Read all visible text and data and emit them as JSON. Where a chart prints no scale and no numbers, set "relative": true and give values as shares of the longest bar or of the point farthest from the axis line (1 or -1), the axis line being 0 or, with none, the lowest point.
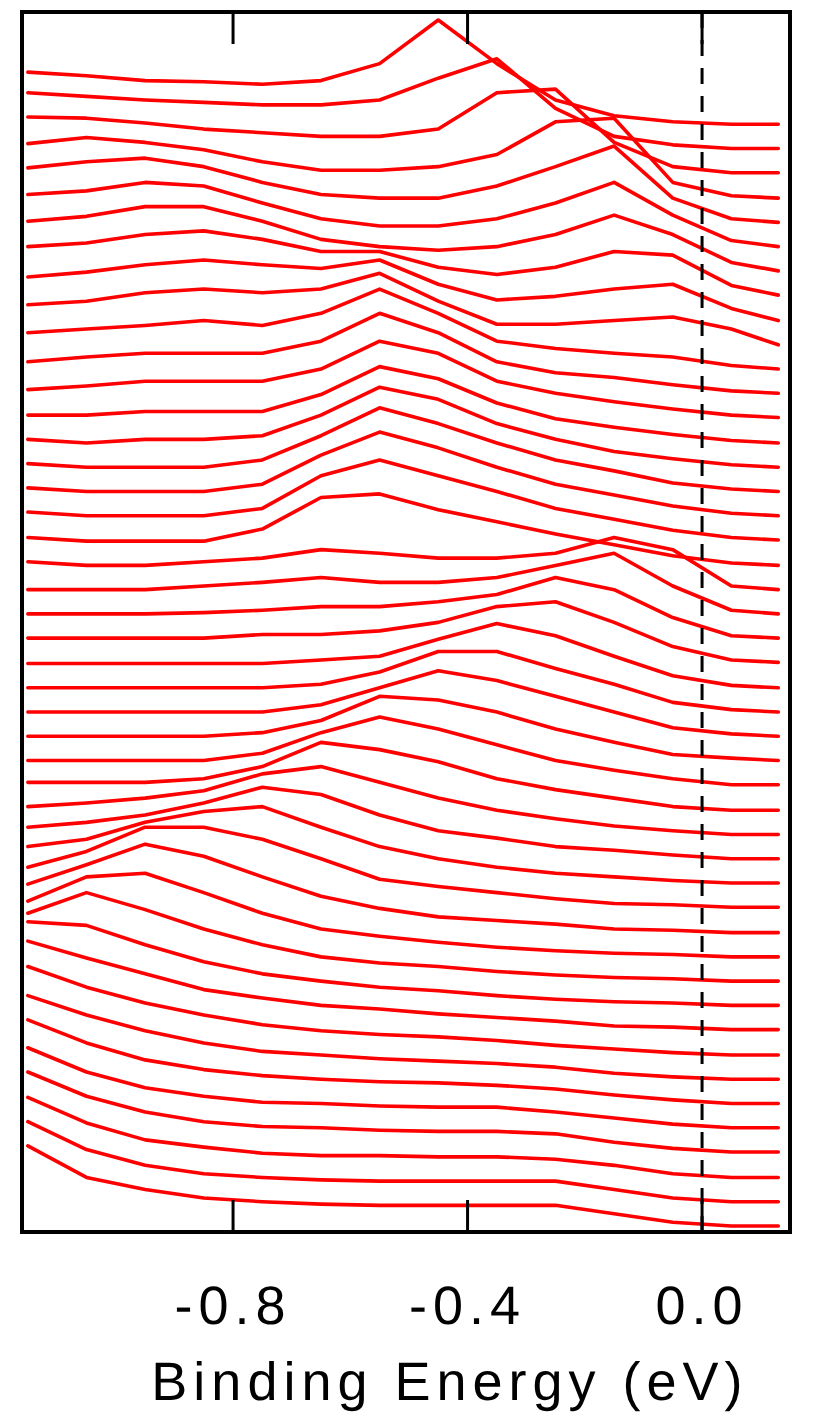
{
  "chart_data": {
    "type": "line",
    "xlabel": "Binding Energy (eV)",
    "relative": true,
    "tick_labels": "x",
    "x": [
      -1.15,
      -1.05,
      -0.95,
      -0.85,
      -0.75,
      -0.65,
      -0.55,
      -0.45,
      -0.35,
      -0.25,
      -0.15,
      -0.05,
      0.05,
      0.13
    ],
    "xlim": [
      -1.16,
      0.15
    ],
    "xticks": [
      -0.8,
      -0.4,
      {
        "value": 0,
        "label": "0.0"
      }
    ],
    "ref_lines": [
      {
        "axis": "x",
        "value": 0,
        "label": null,
        "color": "#000000",
        "line_style": "dashed"
      }
    ],
    "series": [
      {
        "color": "#ff0000",
        "values": [
          0.957,
          0.954,
          0.95,
          0.949,
          0.947,
          0.95,
          0.964,
          1.0,
          0.964,
          0.934,
          0.921,
          0.916,
          0.914,
          0.914
        ]
      },
      {
        "color": "#ff0000",
        "values": [
          0.94,
          0.937,
          0.934,
          0.932,
          0.93,
          0.93,
          0.934,
          0.952,
          0.968,
          0.927,
          0.904,
          0.897,
          0.894,
          0.894
        ]
      },
      {
        "color": "#ff0000",
        "values": [
          0.92,
          0.919,
          0.915,
          0.91,
          0.907,
          0.904,
          0.904,
          0.91,
          0.94,
          0.943,
          0.899,
          0.879,
          0.874,
          0.874
        ]
      },
      {
        "color": "#ff0000",
        "values": [
          0.898,
          0.903,
          0.899,
          0.893,
          0.883,
          0.876,
          0.876,
          0.879,
          0.889,
          0.916,
          0.919,
          0.866,
          0.855,
          0.853
        ]
      },
      {
        "color": "#ff0000",
        "values": [
          0.878,
          0.883,
          0.886,
          0.879,
          0.866,
          0.856,
          0.853,
          0.853,
          0.863,
          0.879,
          0.896,
          0.853,
          0.836,
          0.833
        ]
      },
      {
        "color": "#ff0000",
        "values": [
          0.856,
          0.859,
          0.866,
          0.863,
          0.849,
          0.836,
          0.83,
          0.83,
          0.836,
          0.849,
          0.866,
          0.839,
          0.818,
          0.813
        ]
      },
      {
        "color": "#ff0000",
        "values": [
          0.834,
          0.838,
          0.846,
          0.846,
          0.834,
          0.819,
          0.813,
          0.81,
          0.813,
          0.823,
          0.839,
          0.823,
          0.8,
          0.793
        ]
      },
      {
        "color": "#ff0000",
        "values": [
          0.813,
          0.816,
          0.823,
          0.826,
          0.819,
          0.809,
          0.809,
          0.796,
          0.79,
          0.796,
          0.809,
          0.806,
          0.781,
          0.773
        ]
      },
      {
        "color": "#ff0000",
        "values": [
          0.788,
          0.792,
          0.798,
          0.802,
          0.798,
          0.795,
          0.802,
          0.782,
          0.769,
          0.772,
          0.778,
          0.782,
          0.762,
          0.752
        ]
      },
      {
        "color": "#ff0000",
        "values": [
          0.765,
          0.768,
          0.775,
          0.778,
          0.775,
          0.778,
          0.791,
          0.768,
          0.749,
          0.749,
          0.752,
          0.755,
          0.745,
          0.732
        ]
      },
      {
        "color": "#ff0000",
        "values": [
          0.742,
          0.745,
          0.748,
          0.752,
          0.748,
          0.758,
          0.778,
          0.758,
          0.735,
          0.729,
          0.725,
          0.722,
          0.715,
          0.712
        ]
      },
      {
        "color": "#ff0000",
        "values": [
          0.718,
          0.722,
          0.725,
          0.725,
          0.725,
          0.735,
          0.758,
          0.742,
          0.718,
          0.709,
          0.705,
          0.699,
          0.694,
          0.692
        ]
      },
      {
        "color": "#ff0000",
        "values": [
          0.695,
          0.698,
          0.702,
          0.702,
          0.702,
          0.712,
          0.735,
          0.725,
          0.702,
          0.692,
          0.685,
          0.679,
          0.674,
          0.672
        ]
      },
      {
        "color": "#ff0000",
        "values": [
          0.674,
          0.674,
          0.677,
          0.677,
          0.677,
          0.691,
          0.714,
          0.704,
          0.684,
          0.671,
          0.664,
          0.658,
          0.653,
          0.651
        ]
      },
      {
        "color": "#ff0000",
        "values": [
          0.654,
          0.651,
          0.654,
          0.654,
          0.657,
          0.674,
          0.697,
          0.687,
          0.667,
          0.654,
          0.644,
          0.638,
          0.633,
          0.631
        ]
      },
      {
        "color": "#ff0000",
        "values": [
          0.634,
          0.631,
          0.631,
          0.631,
          0.637,
          0.657,
          0.68,
          0.667,
          0.651,
          0.637,
          0.628,
          0.618,
          0.613,
          0.611
        ]
      },
      {
        "color": "#ff0000",
        "values": [
          0.614,
          0.611,
          0.611,
          0.611,
          0.617,
          0.641,
          0.66,
          0.647,
          0.631,
          0.617,
          0.608,
          0.599,
          0.593,
          0.591
        ]
      },
      {
        "color": "#ff0000",
        "values": [
          0.594,
          0.591,
          0.591,
          0.591,
          0.597,
          0.624,
          0.637,
          0.624,
          0.611,
          0.597,
          0.588,
          0.579,
          0.573,
          0.571
        ]
      },
      {
        "color": "#ff0000",
        "values": [
          0.573,
          0.57,
          0.57,
          0.57,
          0.58,
          0.606,
          0.609,
          0.596,
          0.586,
          0.576,
          0.567,
          0.558,
          0.552,
          0.55
        ]
      },
      {
        "color": "#ff0000",
        "values": [
          0.553,
          0.55,
          0.55,
          0.553,
          0.556,
          0.563,
          0.56,
          0.556,
          0.556,
          0.56,
          0.573,
          0.563,
          0.533,
          0.53
        ]
      },
      {
        "color": "#ff0000",
        "values": [
          0.53,
          0.53,
          0.53,
          0.533,
          0.536,
          0.54,
          0.536,
          0.536,
          0.54,
          0.55,
          0.56,
          0.533,
          0.513,
          0.51
        ]
      },
      {
        "color": "#ff0000",
        "values": [
          0.51,
          0.51,
          0.51,
          0.511,
          0.513,
          0.516,
          0.516,
          0.52,
          0.526,
          0.54,
          0.53,
          0.507,
          0.492,
          0.49
        ]
      },
      {
        "color": "#ff0000",
        "values": [
          0.49,
          0.49,
          0.49,
          0.49,
          0.493,
          0.493,
          0.496,
          0.503,
          0.516,
          0.52,
          0.503,
          0.483,
          0.472,
          0.47
        ]
      },
      {
        "color": "#ff0000",
        "values": [
          0.469,
          0.469,
          0.469,
          0.469,
          0.469,
          0.472,
          0.475,
          0.489,
          0.502,
          0.492,
          0.475,
          0.459,
          0.451,
          0.449
        ]
      },
      {
        "color": "#ff0000",
        "values": [
          0.449,
          0.449,
          0.449,
          0.449,
          0.449,
          0.452,
          0.462,
          0.479,
          0.479,
          0.465,
          0.452,
          0.437,
          0.431,
          0.429
        ]
      },
      {
        "color": "#ff0000",
        "values": [
          0.429,
          0.429,
          0.429,
          0.429,
          0.429,
          0.435,
          0.449,
          0.463,
          0.455,
          0.442,
          0.429,
          0.416,
          0.411,
          0.409
        ]
      },
      {
        "color": "#ff0000",
        "values": [
          0.409,
          0.409,
          0.409,
          0.409,
          0.412,
          0.422,
          0.442,
          0.439,
          0.429,
          0.415,
          0.404,
          0.394,
          0.391,
          0.389
        ]
      },
      {
        "color": "#ff0000",
        "values": [
          0.389,
          0.389,
          0.389,
          0.389,
          0.395,
          0.412,
          0.425,
          0.415,
          0.402,
          0.389,
          0.381,
          0.374,
          0.369,
          0.369
        ]
      },
      {
        "color": "#ff0000",
        "values": [
          0.371,
          0.371,
          0.371,
          0.374,
          0.384,
          0.404,
          0.398,
          0.388,
          0.374,
          0.365,
          0.358,
          0.351,
          0.348,
          0.348
        ]
      },
      {
        "color": "#ff0000",
        "values": [
          0.351,
          0.354,
          0.358,
          0.364,
          0.378,
          0.384,
          0.371,
          0.358,
          0.348,
          0.341,
          0.335,
          0.331,
          0.328,
          0.328
        ]
      },
      {
        "color": "#ff0000",
        "values": [
          0.334,
          0.338,
          0.344,
          0.354,
          0.367,
          0.361,
          0.344,
          0.331,
          0.325,
          0.318,
          0.315,
          0.311,
          0.308,
          0.308
        ]
      },
      {
        "color": "#ff0000",
        "values": [
          0.318,
          0.324,
          0.338,
          0.347,
          0.351,
          0.334,
          0.318,
          0.308,
          0.301,
          0.296,
          0.293,
          0.29,
          0.288,
          0.288
        ]
      },
      {
        "color": "#ff0000",
        "values": [
          0.301,
          0.314,
          0.334,
          0.334,
          0.324,
          0.308,
          0.291,
          0.285,
          0.28,
          0.275,
          0.271,
          0.27,
          0.268,
          0.268
        ]
      },
      {
        "color": "#ff0000",
        "values": [
          0.287,
          0.303,
          0.32,
          0.31,
          0.293,
          0.277,
          0.267,
          0.26,
          0.257,
          0.254,
          0.25,
          0.249,
          0.247,
          0.247
        ]
      },
      {
        "color": "#ff0000",
        "values": [
          0.273,
          0.293,
          0.296,
          0.28,
          0.263,
          0.25,
          0.244,
          0.239,
          0.235,
          0.232,
          0.23,
          0.229,
          0.227,
          0.227
        ]
      },
      {
        "color": "#ff0000",
        "values": [
          0.263,
          0.28,
          0.266,
          0.25,
          0.237,
          0.227,
          0.222,
          0.219,
          0.215,
          0.212,
          0.21,
          0.209,
          0.207,
          0.207
        ]
      },
      {
        "color": "#ff0000",
        "values": [
          0.256,
          0.253,
          0.237,
          0.223,
          0.213,
          0.207,
          0.202,
          0.199,
          0.195,
          0.192,
          0.19,
          0.189,
          0.187,
          0.187
        ]
      },
      {
        "color": "#ff0000",
        "values": [
          0.24,
          0.226,
          0.213,
          0.2,
          0.193,
          0.187,
          0.184,
          0.18,
          0.177,
          0.174,
          0.17,
          0.169,
          0.167,
          0.167
        ]
      },
      {
        "color": "#ff0000",
        "values": [
          0.219,
          0.202,
          0.189,
          0.179,
          0.171,
          0.166,
          0.163,
          0.161,
          0.158,
          0.154,
          0.151,
          0.148,
          0.146,
          0.146
        ]
      },
      {
        "color": "#ff0000",
        "values": [
          0.195,
          0.179,
          0.166,
          0.156,
          0.149,
          0.146,
          0.143,
          0.141,
          0.139,
          0.136,
          0.131,
          0.128,
          0.126,
          0.126
        ]
      },
      {
        "color": "#ff0000",
        "values": [
          0.175,
          0.156,
          0.142,
          0.134,
          0.129,
          0.126,
          0.124,
          0.123,
          0.121,
          0.118,
          0.113,
          0.109,
          0.106,
          0.106
        ]
      },
      {
        "color": "#ff0000",
        "values": [
          0.152,
          0.132,
          0.119,
          0.112,
          0.107,
          0.106,
          0.104,
          0.103,
          0.103,
          0.099,
          0.094,
          0.089,
          0.086,
          0.086
        ]
      },
      {
        "color": "#ff0000",
        "values": [
          0.132,
          0.112,
          0.099,
          0.091,
          0.087,
          0.086,
          0.084,
          0.083,
          0.083,
          0.081,
          0.074,
          0.069,
          0.066,
          0.066
        ]
      },
      {
        "color": "#ff0000",
        "values": [
          0.111,
          0.09,
          0.076,
          0.07,
          0.065,
          0.063,
          0.063,
          0.062,
          0.062,
          0.06,
          0.055,
          0.048,
          0.045,
          0.045
        ]
      },
      {
        "color": "#ff0000",
        "values": [
          0.091,
          0.068,
          0.055,
          0.048,
          0.045,
          0.043,
          0.042,
          0.042,
          0.042,
          0.042,
          0.035,
          0.028,
          0.025,
          0.025
        ]
      },
      {
        "color": "#ff0000",
        "values": [
          0.071,
          0.045,
          0.035,
          0.028,
          0.025,
          0.023,
          0.022,
          0.022,
          0.022,
          0.022,
          0.015,
          0.008,
          0.005,
          0.005
        ]
      }
    ]
  }
}
